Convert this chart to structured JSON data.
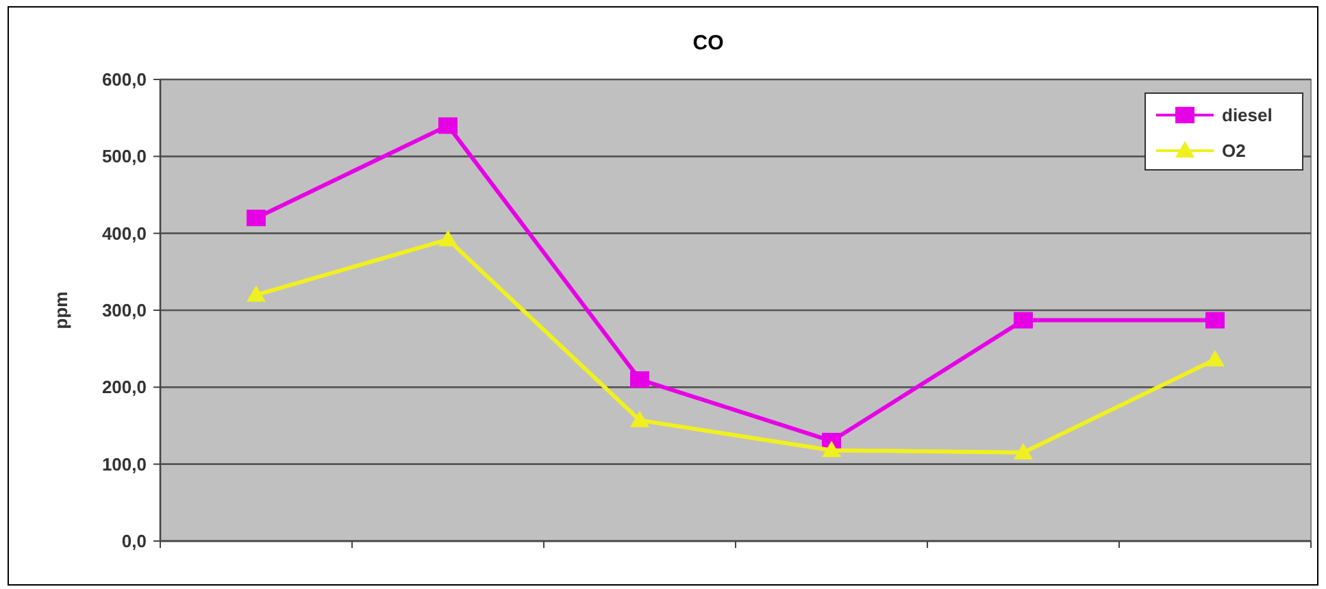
{
  "chart_data": {
    "type": "line",
    "title": "CO",
    "ylabel": "ppm",
    "categories": [
      null,
      null,
      null,
      null,
      null,
      null
    ],
    "series": [
      {
        "name": "diesel",
        "color": "#e600e6",
        "marker": "square",
        "values": [
          420,
          540,
          210,
          130,
          287,
          287
        ]
      },
      {
        "name": "O2",
        "color": "#f0f020",
        "marker": "triangle",
        "values": [
          320,
          392,
          157,
          118,
          115,
          236
        ]
      }
    ],
    "ylim": [
      0,
      600
    ],
    "yticks": [
      {
        "value": 0,
        "label": "0,0"
      },
      {
        "value": 100,
        "label": "100,0"
      },
      {
        "value": 200,
        "label": "200,0"
      },
      {
        "value": 300,
        "label": "300,0"
      },
      {
        "value": 400,
        "label": "400,0"
      },
      {
        "value": 500,
        "label": "500,0"
      },
      {
        "value": 600,
        "label": "600,0"
      }
    ],
    "grid": "y",
    "legend": "top right"
  }
}
